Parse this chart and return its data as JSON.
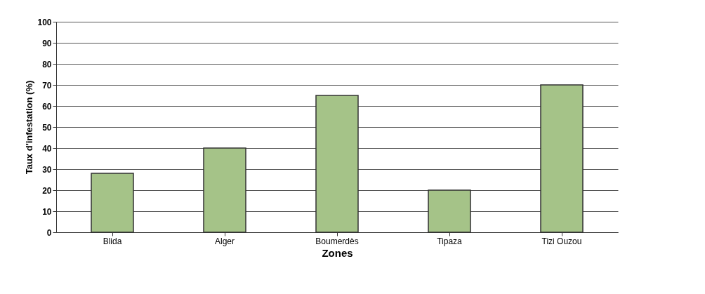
{
  "chart_data": {
    "type": "bar",
    "xlabel": "Zones",
    "ylabel": "Taux d'infestation (%)",
    "categories": [
      "Blida",
      "Alger",
      "Boumerdès",
      "Tipaza",
      "Tizi Ouzou"
    ],
    "values": [
      28,
      40,
      65,
      20,
      70
    ],
    "color": "#a5c388",
    "ylim": [
      0,
      100
    ],
    "yticks": [
      0,
      10,
      20,
      30,
      40,
      50,
      60,
      70,
      80,
      90,
      100
    ],
    "grid": "y"
  }
}
